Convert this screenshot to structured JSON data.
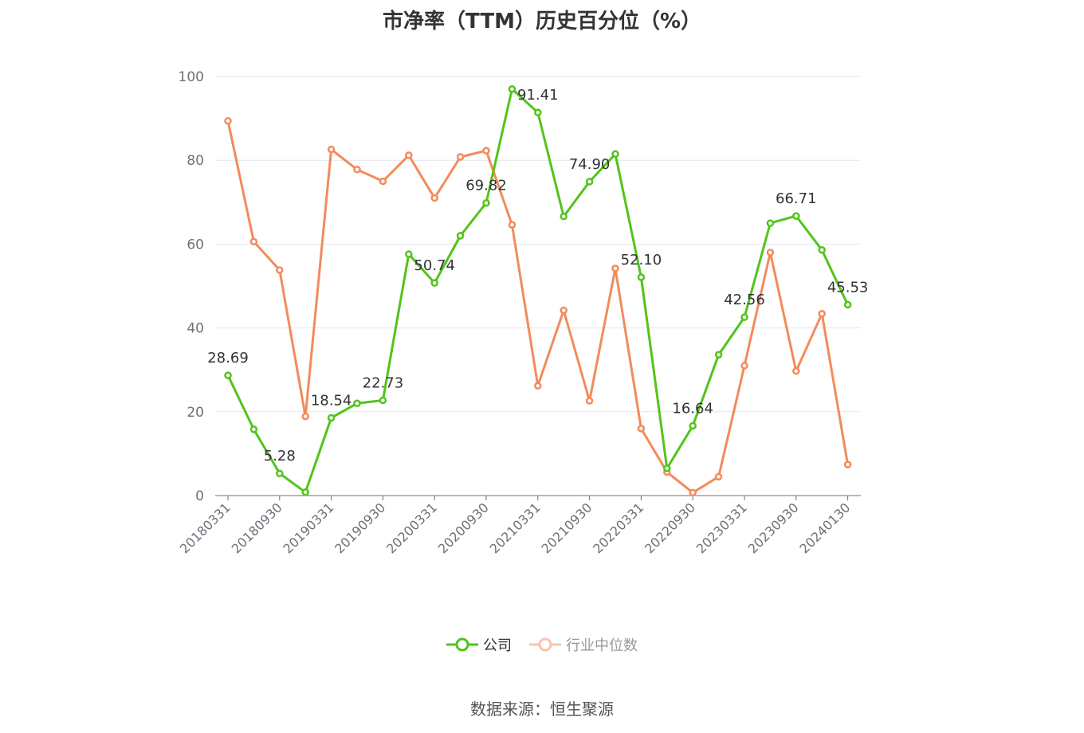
{
  "chart_data": {
    "type": "line",
    "title": "市净率（TTM）历史百分位（%）",
    "x_tick_labels": [
      "20180331",
      "20180930",
      "20190331",
      "20190930",
      "20200331",
      "20200930",
      "20210331",
      "20210930",
      "20220331",
      "20220930",
      "20230331",
      "20230930",
      "20240130"
    ],
    "ylim": [
      0,
      100
    ],
    "y_ticks": [
      0,
      20,
      40,
      60,
      80,
      100
    ],
    "grid": true,
    "legend_position": "bottom",
    "series": [
      {
        "name": "公司",
        "color": "#52c41a",
        "values": [
          28.69,
          15.8,
          5.28,
          0.8,
          18.54,
          22.0,
          22.73,
          57.6,
          50.74,
          62.0,
          69.82,
          97.0,
          91.41,
          66.6,
          74.9,
          81.5,
          52.1,
          6.5,
          16.64,
          33.6,
          42.56,
          65.0,
          66.71,
          58.6,
          45.53
        ],
        "labels": {
          "0": "28.69",
          "2": "5.28",
          "4": "18.54",
          "6": "22.73",
          "8": "50.74",
          "10": "69.82",
          "12": "91.41",
          "14": "74.90",
          "16": "52.10",
          "18": "16.64",
          "20": "42.56",
          "22": "66.71",
          "24": "45.53"
        }
      },
      {
        "name": "行业中位数",
        "color": "#f28b5b",
        "values": [
          89.4,
          60.6,
          53.8,
          18.9,
          82.6,
          77.8,
          75.0,
          81.2,
          71.0,
          80.8,
          82.3,
          64.6,
          26.2,
          44.2,
          22.6,
          54.2,
          16.0,
          5.6,
          0.7,
          4.5,
          31.0,
          58.0,
          29.7,
          43.4,
          7.4
        ]
      }
    ]
  },
  "legend": {
    "company_label": "公司",
    "industry_label": "行业中位数"
  },
  "source": "数据来源：恒生聚源"
}
